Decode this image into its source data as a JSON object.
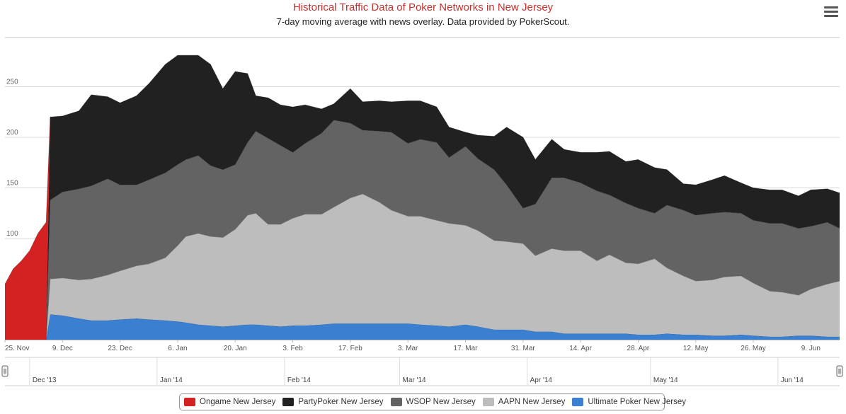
{
  "title": "Historical Traffic Data of Poker Networks in New Jersey",
  "subtitle": "7-day moving average with news overlay. Data provided by PokerScout.",
  "menu_icon": "hamburger-menu-icon",
  "legend": [
    {
      "label": "Ongame New Jersey",
      "color": "#d42121"
    },
    {
      "label": "PartyPoker New Jersey",
      "color": "#212121"
    },
    {
      "label": "WSOP New Jersey",
      "color": "#636363"
    },
    {
      "label": "AAPN New Jersey",
      "color": "#bdbdbd"
    },
    {
      "label": "Ultimate Poker New Jersey",
      "color": "#3b7fd1"
    }
  ],
  "navigator": {
    "labels": [
      "Dec '13",
      "Jan '14",
      "Feb '14",
      "Mar '14",
      "Apr '14",
      "May '14",
      "Jun '14"
    ]
  },
  "chart_data": {
    "type": "area",
    "stacked": true,
    "title": "Historical Traffic Data of Poker Networks in New Jersey",
    "subtitle": "7-day moving average with news overlay. Data provided by PokerScout.",
    "x_range": [
      "2013-11-25",
      "2014-06-16"
    ],
    "ylim": [
      0,
      300
    ],
    "y_ticks": [
      100,
      150,
      200,
      250
    ],
    "x_tick_labels": [
      "25. Nov",
      "9. Dec",
      "23. Dec",
      "6. Jan",
      "20. Jan",
      "3. Feb",
      "17. Feb",
      "3. Mar",
      "17. Mar",
      "31. Mar",
      "14. Apr",
      "28. Apr",
      "12. May",
      "26. May",
      "9. Jun"
    ],
    "x_tick_dates": [
      "2013-11-25",
      "2013-12-09",
      "2013-12-23",
      "2014-01-06",
      "2014-01-20",
      "2014-02-03",
      "2014-02-17",
      "2014-03-03",
      "2014-03-17",
      "2014-03-31",
      "2014-04-14",
      "2014-04-28",
      "2014-05-12",
      "2014-05-26",
      "2014-06-09"
    ],
    "grid": true,
    "legend_position": "bottom",
    "x": [
      "2013-11-25",
      "2013-11-27",
      "2013-11-29",
      "2013-12-01",
      "2013-12-03",
      "2013-12-05",
      "2013-12-06",
      "2013-12-09",
      "2013-12-13",
      "2013-12-16",
      "2013-12-20",
      "2013-12-23",
      "2013-12-27",
      "2013-12-30",
      "2014-01-03",
      "2014-01-06",
      "2014-01-08",
      "2014-01-11",
      "2014-01-14",
      "2014-01-17",
      "2014-01-20",
      "2014-01-23",
      "2014-01-25",
      "2014-01-28",
      "2014-01-31",
      "2014-02-03",
      "2014-02-06",
      "2014-02-10",
      "2014-02-13",
      "2014-02-17",
      "2014-02-20",
      "2014-02-24",
      "2014-02-27",
      "2014-03-03",
      "2014-03-06",
      "2014-03-10",
      "2014-03-13",
      "2014-03-17",
      "2014-03-20",
      "2014-03-24",
      "2014-03-27",
      "2014-03-31",
      "2014-04-03",
      "2014-04-07",
      "2014-04-10",
      "2014-04-14",
      "2014-04-18",
      "2014-04-21",
      "2014-04-25",
      "2014-04-28",
      "2014-05-02",
      "2014-05-05",
      "2014-05-09",
      "2014-05-12",
      "2014-05-16",
      "2014-05-19",
      "2014-05-23",
      "2014-05-26",
      "2014-05-30",
      "2014-06-02",
      "2014-06-06",
      "2014-06-09",
      "2014-06-13",
      "2014-06-16"
    ],
    "series": [
      {
        "name": "Ultimate Poker New Jersey",
        "color": "#3b7fd1",
        "values": [
          0,
          0,
          0,
          0,
          0,
          0,
          25,
          24,
          21,
          19,
          19,
          20,
          21,
          20,
          19,
          18,
          17,
          15,
          14,
          13,
          14,
          15,
          15,
          14,
          13,
          14,
          14,
          15,
          16,
          16,
          16,
          16,
          16,
          16,
          15,
          14,
          13,
          15,
          13,
          10,
          10,
          10,
          8,
          8,
          6,
          6,
          6,
          6,
          6,
          5,
          5,
          6,
          5,
          5,
          4,
          4,
          5,
          4,
          3,
          3,
          4,
          4,
          3,
          3
        ]
      },
      {
        "name": "AAPN New Jersey",
        "color": "#bdbdbd",
        "values": [
          0,
          0,
          0,
          0,
          0,
          0,
          35,
          37,
          38,
          41,
          45,
          48,
          52,
          55,
          62,
          75,
          85,
          90,
          88,
          88,
          95,
          108,
          110,
          100,
          101,
          106,
          110,
          109,
          115,
          124,
          128,
          120,
          112,
          106,
          107,
          104,
          102,
          98,
          95,
          88,
          87,
          85,
          75,
          82,
          82,
          82,
          72,
          78,
          70,
          70,
          75,
          65,
          58,
          53,
          55,
          58,
          58,
          52,
          45,
          44,
          40,
          46,
          52,
          55
        ]
      },
      {
        "name": "WSOP New Jersey",
        "color": "#636363",
        "values": [
          0,
          0,
          0,
          0,
          0,
          0,
          78,
          85,
          90,
          92,
          95,
          85,
          80,
          83,
          84,
          80,
          76,
          77,
          70,
          67,
          64,
          72,
          81,
          85,
          78,
          65,
          70,
          80,
          86,
          74,
          63,
          70,
          77,
          72,
          76,
          77,
          65,
          78,
          71,
          70,
          56,
          35,
          51,
          70,
          72,
          67,
          69,
          59,
          59,
          55,
          45,
          62,
          65,
          65,
          66,
          64,
          62,
          62,
          67,
          68,
          66,
          62,
          61,
          52
        ]
      },
      {
        "name": "PartyPoker New Jersey",
        "color": "#212121",
        "values": [
          0,
          0,
          0,
          0,
          0,
          0,
          82,
          75,
          77,
          90,
          81,
          81,
          88,
          95,
          107,
          108,
          103,
          99,
          100,
          80,
          92,
          68,
          35,
          40,
          40,
          45,
          38,
          24,
          16,
          34,
          28,
          30,
          30,
          42,
          38,
          35,
          30,
          14,
          23,
          33,
          57,
          70,
          44,
          38,
          28,
          30,
          38,
          43,
          41,
          48,
          45,
          35,
          26,
          30,
          33,
          36,
          30,
          32,
          33,
          33,
          32,
          36,
          33,
          35
        ]
      },
      {
        "name": "Ongame New Jersey",
        "color": "#d42121",
        "values": [
          55,
          70,
          78,
          88,
          105,
          116,
          0,
          0,
          0,
          0,
          0,
          0,
          0,
          0,
          0,
          0,
          0,
          0,
          0,
          0,
          0,
          0,
          0,
          0,
          0,
          0,
          0,
          0,
          0,
          0,
          0,
          0,
          0,
          0,
          0,
          0,
          0,
          0,
          0,
          0,
          0,
          0,
          0,
          0,
          0,
          0,
          0,
          0,
          0,
          0,
          0,
          0,
          0,
          0,
          0,
          0,
          0,
          0,
          0,
          0,
          0,
          0,
          0,
          0
        ]
      }
    ]
  }
}
